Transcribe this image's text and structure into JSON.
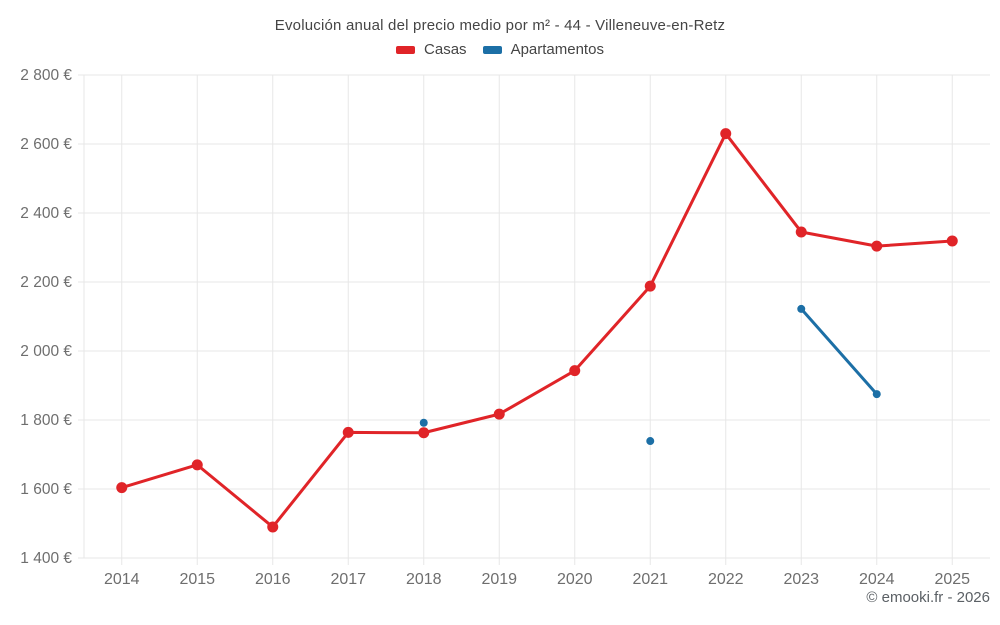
{
  "title": "Evolución anual del precio medio por m² - 44 - Villeneuve-en-Retz",
  "legend": {
    "items": [
      {
        "label": "Casas",
        "color": "#e02428"
      },
      {
        "label": "Apartamentos",
        "color": "#1c6fa6"
      }
    ]
  },
  "footer": {
    "credit": "© emooki.fr - 2026"
  },
  "chart_data": {
    "type": "line",
    "title": "Evolución anual del precio medio por m² - 44 - Villeneuve-en-Retz",
    "x_categories": [
      "2014",
      "2015",
      "2016",
      "2017",
      "2018",
      "2019",
      "2020",
      "2021",
      "2022",
      "2023",
      "2024",
      "2025"
    ],
    "series": [
      {
        "name": "Casas",
        "color": "#e02428",
        "line_width": 3,
        "marker_radius": 5.5,
        "values": [
          1604,
          1670,
          1490,
          1764,
          1763,
          1817,
          1943,
          2188,
          2630,
          2345,
          2304,
          2319
        ]
      },
      {
        "name": "Apartamentos",
        "color": "#1c6fa6",
        "line_width": 3,
        "marker_radius": 4,
        "values": [
          null,
          null,
          null,
          null,
          1792,
          null,
          null,
          1739,
          null,
          2122,
          1875,
          null
        ]
      }
    ],
    "y_axis": {
      "min": 1400,
      "max": 2800,
      "tick_step": 200,
      "tick_labels": [
        "1 400 €",
        "1 600 €",
        "1 800 €",
        "2 000 €",
        "2 200 €",
        "2 400 €",
        "2 600 €",
        "2 800 €"
      ],
      "currency": "EUR"
    },
    "grid": true,
    "legend_position": "top",
    "grid_color": "#e7e7e7",
    "tick_label_color": "#6e6e6e"
  }
}
